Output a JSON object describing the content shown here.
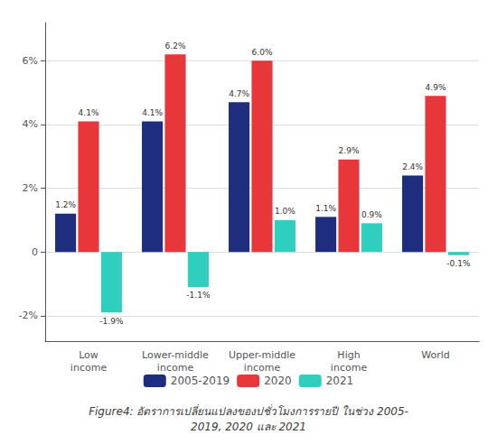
{
  "chart_data": {
    "type": "bar",
    "title": "Figure4: อัตราการเปลี่ยนแปลงของปชั่วโมงการรายปี ในช่วง 2005-\n2019, 2020 และ 2021",
    "categories": [
      "Low\nincome",
      "Lower-middle\nincome",
      "Upper-middle\nincome",
      "High\nincome",
      "World"
    ],
    "series": [
      {
        "name": "2005-2019",
        "color": "#1e2d7d",
        "values": [
          1.2,
          4.1,
          4.7,
          1.1,
          2.4
        ],
        "value_labels": [
          "1.2%",
          "4.1%",
          "4.7%",
          "1.1%",
          "2.4%"
        ]
      },
      {
        "name": "2020",
        "color": "#e8373a",
        "values": [
          4.1,
          6.2,
          6.0,
          2.9,
          4.9
        ],
        "value_labels": [
          "4.1%",
          "6.2%",
          "6.0%",
          "2.9%",
          "4.9%"
        ]
      },
      {
        "name": "2021",
        "color": "#2ecfbe",
        "values": [
          -1.9,
          -1.1,
          1.0,
          0.9,
          -0.1
        ],
        "value_labels": [
          "-1.9%",
          "-1.1%",
          "1.0%",
          "0.9%",
          "-0.1%"
        ]
      }
    ],
    "ylim": [
      -2.8,
      7.2
    ],
    "yticks": [
      {
        "value": -2,
        "label": "-2%"
      },
      0,
      {
        "value": 2,
        "label": "2%"
      },
      {
        "value": 4,
        "label": "4%"
      },
      {
        "value": 6,
        "label": "6%"
      }
    ],
    "grid": true,
    "legend": "bottom",
    "data_labels": true
  }
}
